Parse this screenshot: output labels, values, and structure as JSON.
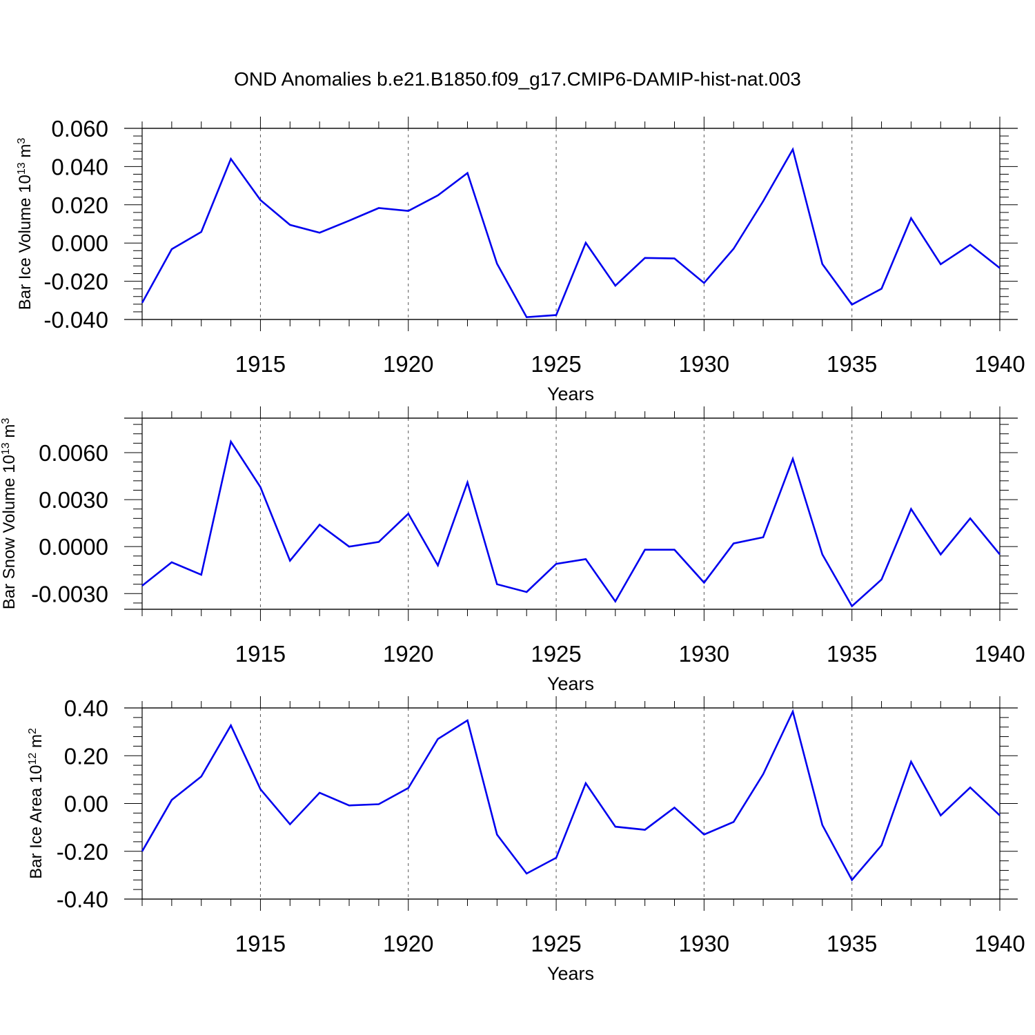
{
  "title": "OND Anomalies b.e21.B1850.f09_g17.CMIP6-DAMIP-hist-nat.003",
  "colors": {
    "line": "#0000ee",
    "axis": "#000000",
    "grid": "#555555"
  },
  "chart_data": [
    {
      "type": "line",
      "ylabel": {
        "main": "Bar Ice Volume 10",
        "sup": "13",
        "unit": " m",
        "unit_sup": "3"
      },
      "xlabel": "Years",
      "xlim": [
        1911,
        1940
      ],
      "ylim": [
        -0.04,
        0.06
      ],
      "yticks": [
        -0.04,
        -0.02,
        0.0,
        0.02,
        0.04,
        0.06
      ],
      "ytick_labels": [
        "-0.040",
        "-0.020",
        "0.000",
        "0.020",
        "0.040",
        "0.060"
      ],
      "xticks": [
        1915,
        1920,
        1925,
        1930,
        1935,
        1940
      ],
      "xtick_labels": [
        "1915",
        "1920",
        "1925",
        "1930",
        "1935",
        "1940"
      ],
      "x": [
        1911,
        1912,
        1913,
        1914,
        1915,
        1916,
        1917,
        1918,
        1919,
        1920,
        1921,
        1922,
        1923,
        1924,
        1925,
        1926,
        1927,
        1928,
        1929,
        1930,
        1931,
        1932,
        1933,
        1934,
        1935,
        1936,
        1937,
        1938,
        1939,
        1940
      ],
      "series": [
        {
          "name": "Bar Ice Volume",
          "values": [
            -0.0313,
            -0.0032,
            0.0058,
            0.044,
            0.0225,
            0.0095,
            0.0054,
            0.0117,
            0.0183,
            0.0168,
            0.0249,
            0.0366,
            -0.0108,
            -0.0388,
            -0.0377,
            0.0001,
            -0.0223,
            -0.0078,
            -0.0081,
            -0.0209,
            -0.003,
            0.0219,
            0.049,
            -0.011,
            -0.0322,
            -0.0239,
            0.013,
            -0.0111,
            -0.0009,
            -0.0131
          ]
        }
      ]
    },
    {
      "type": "line",
      "ylabel": {
        "main": "Bar Snow Volume 10",
        "sup": "13",
        "unit": " m",
        "unit_sup": "3"
      },
      "xlabel": "Years",
      "xlim": [
        1911,
        1940
      ],
      "ylim": [
        -0.004,
        0.0082
      ],
      "yticks": [
        -0.003,
        0.0,
        0.003,
        0.006
      ],
      "ytick_labels": [
        "-0.0030",
        "0.0000",
        "0.0030",
        "0.0060"
      ],
      "xticks": [
        1915,
        1920,
        1925,
        1930,
        1935,
        1940
      ],
      "xtick_labels": [
        "1915",
        "1920",
        "1925",
        "1930",
        "1935",
        "1940"
      ],
      "x": [
        1911,
        1912,
        1913,
        1914,
        1915,
        1916,
        1917,
        1918,
        1919,
        1920,
        1921,
        1922,
        1923,
        1924,
        1925,
        1926,
        1927,
        1928,
        1929,
        1930,
        1931,
        1932,
        1933,
        1934,
        1935,
        1936,
        1937,
        1938,
        1939,
        1940
      ],
      "series": [
        {
          "name": "Bar Snow Volume",
          "values": [
            -0.0025,
            -0.001,
            -0.0018,
            0.0067,
            0.0038,
            -0.0009,
            0.0014,
            0.0,
            0.0003,
            0.0021,
            -0.0012,
            0.0041,
            -0.0024,
            -0.0029,
            -0.0011,
            -0.0008,
            -0.0035,
            -0.0002,
            -0.0002,
            -0.0023,
            0.0002,
            0.0006,
            0.0056,
            -0.0005,
            -0.0038,
            -0.0021,
            0.0024,
            -0.0005,
            0.0018,
            -0.0005
          ]
        }
      ]
    },
    {
      "type": "line",
      "ylabel": {
        "main": "Bar Ice Area 10",
        "sup": "12",
        "unit": " m",
        "unit_sup": "2"
      },
      "xlabel": "Years",
      "xlim": [
        1911,
        1940
      ],
      "ylim": [
        -0.4,
        0.4
      ],
      "yticks": [
        -0.4,
        -0.2,
        0.0,
        0.2,
        0.4
      ],
      "ytick_labels": [
        "-0.40",
        "-0.20",
        "0.00",
        "0.20",
        "0.40"
      ],
      "xticks": [
        1915,
        1920,
        1925,
        1930,
        1935,
        1940
      ],
      "xtick_labels": [
        "1915",
        "1920",
        "1925",
        "1930",
        "1935",
        "1940"
      ],
      "x": [
        1911,
        1912,
        1913,
        1914,
        1915,
        1916,
        1917,
        1918,
        1919,
        1920,
        1921,
        1922,
        1923,
        1924,
        1925,
        1926,
        1927,
        1928,
        1929,
        1930,
        1931,
        1932,
        1933,
        1934,
        1935,
        1936,
        1937,
        1938,
        1939,
        1940
      ],
      "series": [
        {
          "name": "Bar Ice Area",
          "values": [
            -0.2,
            0.015,
            0.113,
            0.327,
            0.06,
            -0.087,
            0.045,
            -0.008,
            -0.003,
            0.065,
            0.27,
            0.348,
            -0.13,
            -0.293,
            -0.227,
            0.085,
            -0.097,
            -0.11,
            -0.017,
            -0.13,
            -0.077,
            0.123,
            0.385,
            -0.09,
            -0.32,
            -0.175,
            0.175,
            -0.05,
            0.067,
            -0.05
          ]
        }
      ]
    }
  ]
}
